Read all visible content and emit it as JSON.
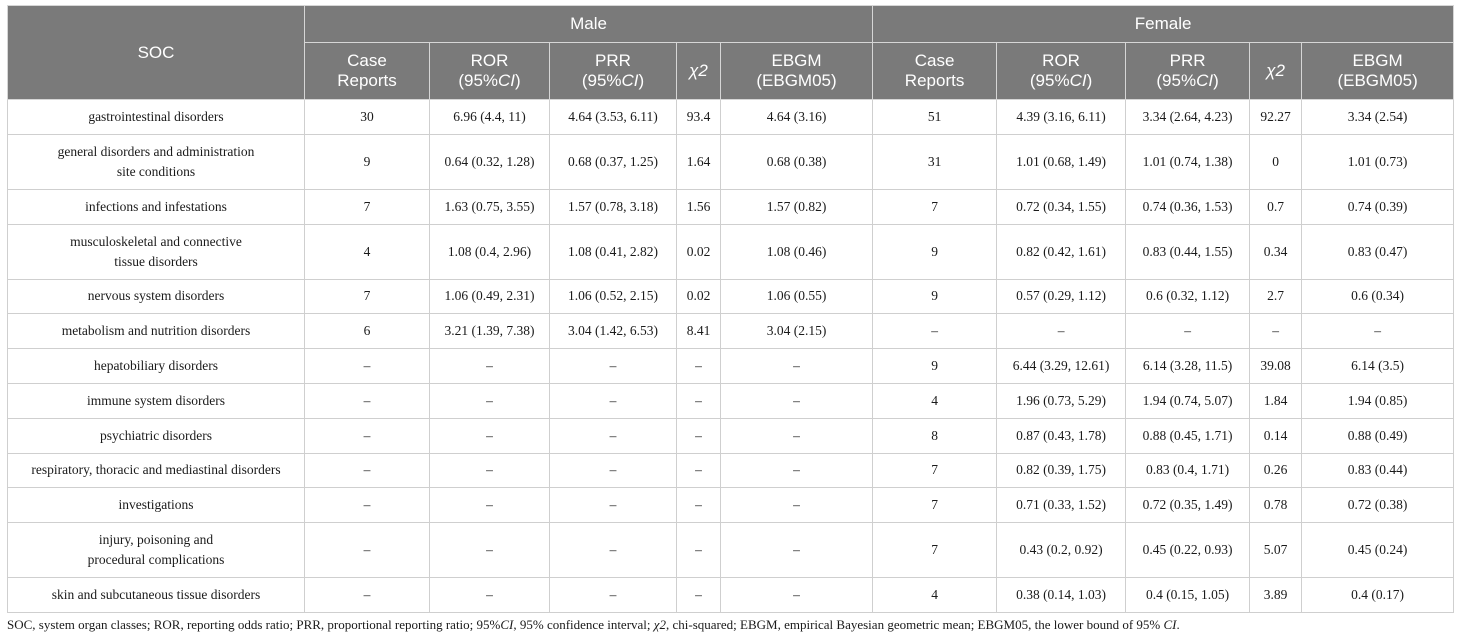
{
  "header": {
    "soc": "SOC",
    "male": "Male",
    "female": "Female",
    "case_reports": [
      "Case",
      "Reports"
    ],
    "ror": [
      "ROR",
      "95%",
      "CI"
    ],
    "prr": [
      "PRR",
      "95%",
      "CI"
    ],
    "chi2": "χ2",
    "ebgm": [
      "EBGM",
      "(EBGM05)"
    ]
  },
  "rows": [
    {
      "soc": [
        "gastrointestinal disorders"
      ],
      "m": [
        "30",
        "6.96 (4.4, 11)",
        "4.64 (3.53, 6.11)",
        "93.4",
        "4.64 (3.16)"
      ],
      "f": [
        "51",
        "4.39 (3.16, 6.11)",
        "3.34 (2.64, 4.23)",
        "92.27",
        "3.34 (2.54)"
      ]
    },
    {
      "soc": [
        "general disorders and administration",
        "site conditions"
      ],
      "m": [
        "9",
        "0.64 (0.32, 1.28)",
        "0.68 (0.37, 1.25)",
        "1.64",
        "0.68 (0.38)"
      ],
      "f": [
        "31",
        "1.01 (0.68, 1.49)",
        "1.01 (0.74, 1.38)",
        "0",
        "1.01 (0.73)"
      ]
    },
    {
      "soc": [
        "infections and infestations"
      ],
      "m": [
        "7",
        "1.63 (0.75, 3.55)",
        "1.57 (0.78, 3.18)",
        "1.56",
        "1.57 (0.82)"
      ],
      "f": [
        "7",
        "0.72 (0.34, 1.55)",
        "0.74 (0.36, 1.53)",
        "0.7",
        "0.74 (0.39)"
      ]
    },
    {
      "soc": [
        "musculoskeletal and connective",
        "tissue disorders"
      ],
      "m": [
        "4",
        "1.08 (0.4, 2.96)",
        "1.08 (0.41, 2.82)",
        "0.02",
        "1.08 (0.46)"
      ],
      "f": [
        "9",
        "0.82 (0.42, 1.61)",
        "0.83 (0.44, 1.55)",
        "0.34",
        "0.83 (0.47)"
      ]
    },
    {
      "soc": [
        "nervous system disorders"
      ],
      "m": [
        "7",
        "1.06 (0.49, 2.31)",
        "1.06 (0.52, 2.15)",
        "0.02",
        "1.06 (0.55)"
      ],
      "f": [
        "9",
        "0.57 (0.29, 1.12)",
        "0.6 (0.32, 1.12)",
        "2.7",
        "0.6 (0.34)"
      ]
    },
    {
      "soc": [
        "metabolism and nutrition disorders"
      ],
      "m": [
        "6",
        "3.21 (1.39, 7.38)",
        "3.04 (1.42, 6.53)",
        "8.41",
        "3.04 (2.15)"
      ],
      "f": [
        "–",
        "–",
        "–",
        "–",
        "–"
      ]
    },
    {
      "soc": [
        "hepatobiliary disorders"
      ],
      "m": [
        "–",
        "–",
        "–",
        "–",
        "–"
      ],
      "f": [
        "9",
        "6.44 (3.29, 12.61)",
        "6.14 (3.28, 11.5)",
        "39.08",
        "6.14 (3.5)"
      ]
    },
    {
      "soc": [
        "immune system disorders"
      ],
      "m": [
        "–",
        "–",
        "–",
        "–",
        "–"
      ],
      "f": [
        "4",
        "1.96 (0.73, 5.29)",
        "1.94 (0.74, 5.07)",
        "1.84",
        "1.94 (0.85)"
      ]
    },
    {
      "soc": [
        "psychiatric disorders"
      ],
      "m": [
        "–",
        "–",
        "–",
        "–",
        "–"
      ],
      "f": [
        "8",
        "0.87 (0.43, 1.78)",
        "0.88 (0.45, 1.71)",
        "0.14",
        "0.88 (0.49)"
      ]
    },
    {
      "soc": [
        "respiratory, thoracic and mediastinal disorders"
      ],
      "m": [
        "–",
        "–",
        "–",
        "–",
        "–"
      ],
      "f": [
        "7",
        "0.82 (0.39, 1.75)",
        "0.83 (0.4, 1.71)",
        "0.26",
        "0.83 (0.44)"
      ]
    },
    {
      "soc": [
        "investigations"
      ],
      "m": [
        "–",
        "–",
        "–",
        "–",
        "–"
      ],
      "f": [
        "7",
        "0.71 (0.33, 1.52)",
        "0.72 (0.35, 1.49)",
        "0.78",
        "0.72 (0.38)"
      ]
    },
    {
      "soc": [
        "injury, poisoning and",
        "procedural complications"
      ],
      "m": [
        "–",
        "–",
        "–",
        "–",
        "–"
      ],
      "f": [
        "7",
        "0.43 (0.2, 0.92)",
        "0.45 (0.22, 0.93)",
        "5.07",
        "0.45 (0.24)"
      ]
    },
    {
      "soc": [
        "skin and subcutaneous tissue disorders"
      ],
      "m": [
        "–",
        "–",
        "–",
        "–",
        "–"
      ],
      "f": [
        "4",
        "0.38 (0.14, 1.03)",
        "0.4 (0.15, 1.05)",
        "3.89",
        "0.4 (0.17)"
      ]
    }
  ],
  "footnote": {
    "a": "SOC, system organ classes; ROR, reporting odds ratio; PRR, proportional reporting ratio; 95%",
    "b": "CI",
    "c": ", 95% confidence interval; ",
    "d": "χ2",
    "e": ", chi-squared; EBGM, empirical Bayesian geometric mean; EBGM05, the lower bound of 95% ",
    "f": "CI",
    "g": "."
  },
  "colors": {
    "header_bg": "#7a7a7a",
    "header_text": "#ffffff",
    "border": "#cfcfcf"
  }
}
